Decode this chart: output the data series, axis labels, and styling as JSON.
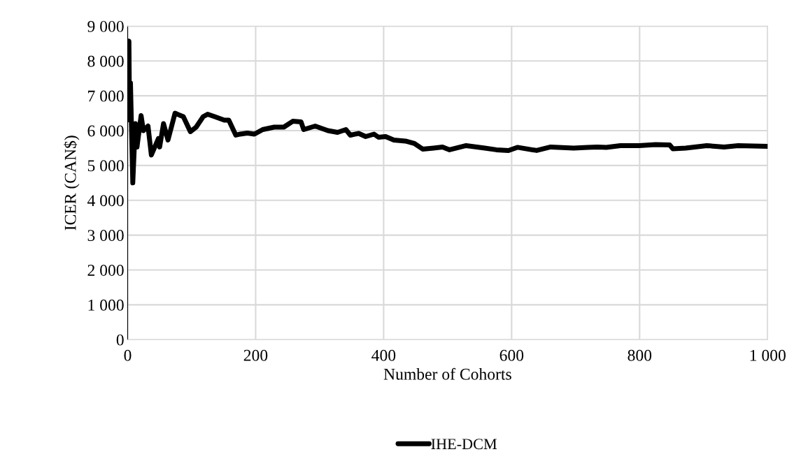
{
  "chart_data": {
    "type": "line",
    "xlabel": "Number of Cohorts",
    "ylabel": "ICER (CAN$)",
    "series": [
      {
        "name": "IHE-DCM",
        "color": "#000000",
        "x": [
          1,
          2,
          3,
          4.4,
          8,
          12,
          14.6,
          21,
          24.6,
          31.8,
          37,
          48,
          50,
          56,
          63,
          74,
          87,
          98,
          107,
          118,
          125,
          136,
          151,
          158,
          169,
          176,
          187,
          198,
          211,
          229,
          244,
          258,
          271,
          275,
          293,
          313,
          328,
          341,
          348,
          361,
          372,
          385,
          392,
          403,
          416,
          434,
          448,
          461,
          478,
          492,
          503,
          529,
          558,
          576,
          595,
          609,
          639,
          661,
          697,
          719,
          734,
          748,
          770,
          799,
          825,
          847,
          852,
          872,
          905,
          932,
          954,
          1000
        ],
        "values": [
          8500,
          8570,
          6300,
          7370,
          4500,
          6200,
          5530,
          6430,
          6000,
          6130,
          5300,
          5770,
          5530,
          6200,
          5730,
          6500,
          6400,
          5970,
          6100,
          6400,
          6470,
          6400,
          6300,
          6300,
          5870,
          5900,
          5930,
          5900,
          6030,
          6100,
          6100,
          6270,
          6250,
          6030,
          6130,
          6000,
          5950,
          6030,
          5870,
          5920,
          5830,
          5900,
          5810,
          5830,
          5730,
          5700,
          5630,
          5470,
          5500,
          5530,
          5450,
          5570,
          5500,
          5450,
          5430,
          5520,
          5430,
          5530,
          5500,
          5520,
          5530,
          5520,
          5570,
          5570,
          5600,
          5590,
          5480,
          5500,
          5570,
          5530,
          5570,
          5550
        ]
      }
    ],
    "xlim": [
      0,
      1000
    ],
    "xticks": [
      0,
      200,
      400,
      600,
      800,
      {
        "value": 1000,
        "label": "1 000"
      }
    ],
    "ylim": [
      0,
      9000
    ],
    "yticks": [
      0,
      {
        "value": 1000,
        "label": "1 000"
      },
      {
        "value": 2000,
        "label": "2 000"
      },
      {
        "value": 3000,
        "label": "3 000"
      },
      {
        "value": 4000,
        "label": "4 000"
      },
      {
        "value": 5000,
        "label": "5 000"
      },
      {
        "value": 6000,
        "label": "6 000"
      },
      {
        "value": 7000,
        "label": "7 000"
      },
      {
        "value": 8000,
        "label": "8 000"
      },
      {
        "value": 9000,
        "label": "9 000"
      }
    ],
    "grid": true,
    "legend": "bottom",
    "marker": "none",
    "line_style": "solid"
  }
}
